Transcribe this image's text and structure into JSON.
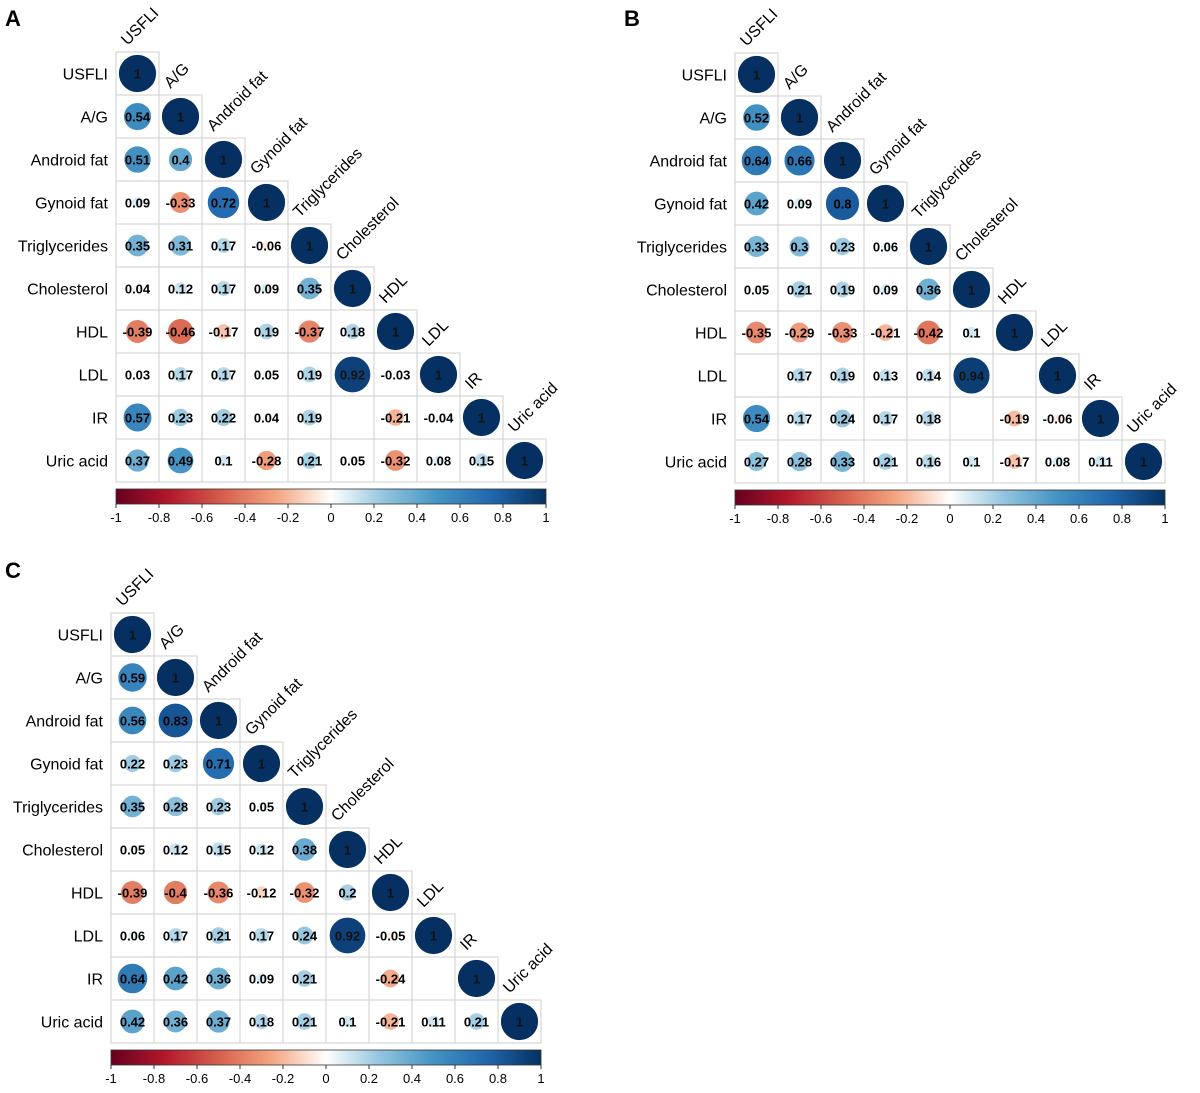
{
  "chart_data": [
    {
      "type": "heatmap",
      "panel_label": "A",
      "variables": [
        "USFLI",
        "A/G",
        "Android fat",
        "Gynoid fat",
        "Triglycerides",
        "Cholesterol",
        "HDL",
        "LDL",
        "IR",
        "Uric acid"
      ],
      "matrix": [
        [
          1
        ],
        [
          0.54,
          1
        ],
        [
          0.51,
          0.4,
          1
        ],
        [
          0.09,
          -0.33,
          0.72,
          1
        ],
        [
          0.35,
          0.31,
          0.17,
          -0.06,
          1
        ],
        [
          0.04,
          0.12,
          0.17,
          0.09,
          0.35,
          1
        ],
        [
          -0.39,
          -0.46,
          -0.17,
          0.19,
          -0.37,
          0.18,
          1
        ],
        [
          0.03,
          0.17,
          0.17,
          0.05,
          0.19,
          0.92,
          -0.03,
          1
        ],
        [
          0.57,
          0.23,
          0.22,
          0.04,
          0.19,
          null,
          -0.21,
          -0.04,
          1
        ],
        [
          0.37,
          0.49,
          0.1,
          -0.28,
          0.21,
          0.05,
          -0.32,
          0.08,
          0.15,
          1
        ]
      ],
      "colorbar": {
        "min": -1,
        "max": 1,
        "ticks": [
          "-1",
          "-0.8",
          "-0.6",
          "-0.4",
          "-0.2",
          "0",
          "0.2",
          "0.4",
          "0.6",
          "0.8",
          "1"
        ]
      }
    },
    {
      "type": "heatmap",
      "panel_label": "B",
      "variables": [
        "USFLI",
        "A/G",
        "Android fat",
        "Gynoid fat",
        "Triglycerides",
        "Cholesterol",
        "HDL",
        "LDL",
        "IR",
        "Uric acid"
      ],
      "matrix": [
        [
          1
        ],
        [
          0.52,
          1
        ],
        [
          0.64,
          0.66,
          1
        ],
        [
          0.42,
          0.09,
          0.8,
          1
        ],
        [
          0.33,
          0.3,
          0.23,
          0.06,
          1
        ],
        [
          0.05,
          0.21,
          0.19,
          0.09,
          0.36,
          1
        ],
        [
          -0.35,
          -0.29,
          -0.33,
          -0.21,
          -0.42,
          0.1,
          1
        ],
        [
          null,
          0.17,
          0.19,
          0.13,
          0.14,
          0.94,
          null,
          1
        ],
        [
          0.54,
          0.17,
          0.24,
          0.17,
          0.18,
          null,
          -0.19,
          -0.06,
          1
        ],
        [
          0.27,
          0.28,
          0.33,
          0.21,
          0.16,
          0.1,
          -0.17,
          0.08,
          0.11,
          1
        ]
      ],
      "colorbar": {
        "min": -1,
        "max": 1,
        "ticks": [
          "-1",
          "-0.8",
          "-0.6",
          "-0.4",
          "-0.2",
          "0",
          "0.2",
          "0.4",
          "0.6",
          "0.8",
          "1"
        ]
      }
    },
    {
      "type": "heatmap",
      "panel_label": "C",
      "variables": [
        "USFLI",
        "A/G",
        "Android fat",
        "Gynoid fat",
        "Triglycerides",
        "Cholesterol",
        "HDL",
        "LDL",
        "IR",
        "Uric acid"
      ],
      "matrix": [
        [
          1
        ],
        [
          0.59,
          1
        ],
        [
          0.56,
          0.83,
          1
        ],
        [
          0.22,
          0.23,
          0.71,
          1
        ],
        [
          0.35,
          0.28,
          0.23,
          0.05,
          1
        ],
        [
          0.05,
          0.12,
          0.15,
          0.12,
          0.38,
          1
        ],
        [
          -0.39,
          -0.4,
          -0.36,
          -0.12,
          -0.32,
          0.2,
          1
        ],
        [
          0.06,
          0.17,
          0.21,
          0.17,
          0.24,
          0.92,
          -0.05,
          1
        ],
        [
          0.64,
          0.42,
          0.36,
          0.09,
          0.21,
          null,
          -0.24,
          null,
          1
        ],
        [
          0.42,
          0.36,
          0.37,
          0.18,
          0.21,
          0.1,
          -0.21,
          0.11,
          0.21,
          1
        ]
      ],
      "colorbar": {
        "min": -1,
        "max": 1,
        "ticks": [
          "-1",
          "-0.8",
          "-0.6",
          "-0.4",
          "-0.2",
          "0",
          "0.2",
          "0.4",
          "0.6",
          "0.8",
          "1"
        ]
      }
    }
  ]
}
